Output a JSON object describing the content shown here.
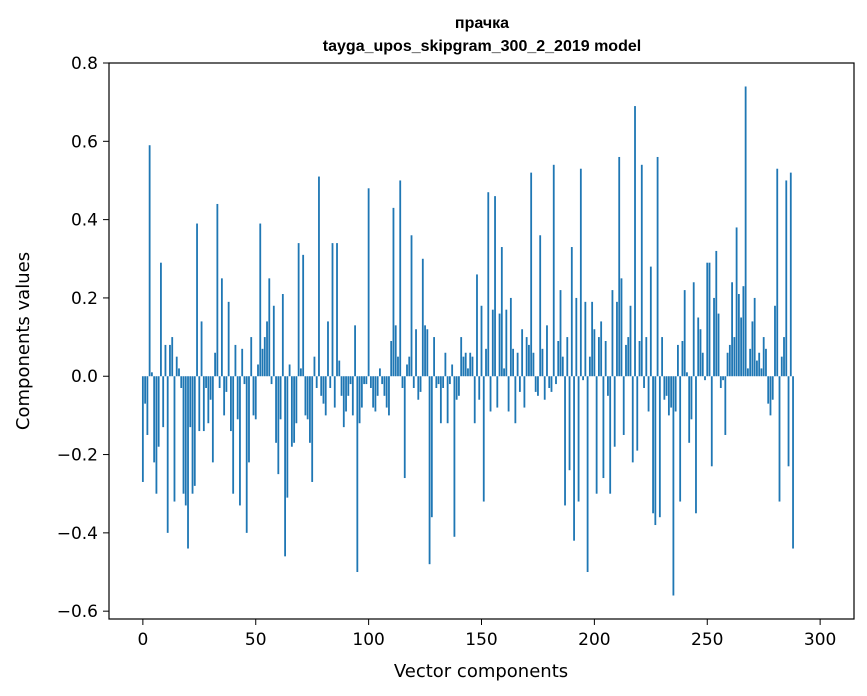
{
  "chart_data": {
    "type": "bar",
    "title": "прачка",
    "subtitle": "tayga_upos_skipgram_300_2_2019 model",
    "xlabel": "Vector components",
    "ylabel": "Components values",
    "xlim": [
      -15,
      315
    ],
    "ylim": [
      -0.62,
      0.8
    ],
    "xticks": [
      0,
      50,
      100,
      150,
      200,
      250,
      300
    ],
    "xtick_labels": [
      "0",
      "50",
      "100",
      "150",
      "200",
      "250",
      "300"
    ],
    "yticks": [
      0.8,
      0.6,
      0.4,
      0.2,
      0.0,
      -0.2,
      -0.4,
      -0.6
    ],
    "ytick_labels": [
      "0.8",
      "0.6",
      "0.4",
      "0.2",
      "0.0",
      "−0.2",
      "−0.4",
      "−0.6"
    ],
    "grid": false,
    "bar_color": "#1f77b4",
    "series": [
      {
        "values": [
          -0.27,
          -0.07,
          -0.15,
          0.59,
          0.01,
          -0.22,
          -0.3,
          -0.18,
          0.29,
          -0.13,
          0.08,
          -0.4,
          0.08,
          0.1,
          -0.32,
          0.05,
          0.02,
          -0.03,
          -0.3,
          -0.33,
          -0.44,
          -0.13,
          -0.3,
          -0.28,
          0.39,
          -0.14,
          0.14,
          -0.14,
          -0.03,
          -0.12,
          -0.06,
          -0.22,
          0.06,
          0.44,
          -0.03,
          0.25,
          -0.1,
          -0.04,
          0.19,
          -0.14,
          -0.3,
          0.08,
          -0.11,
          -0.33,
          0.07,
          -0.02,
          -0.4,
          -0.22,
          0.1,
          -0.1,
          -0.11,
          0.03,
          0.39,
          0.07,
          0.1,
          0.14,
          0.25,
          -0.02,
          0.18,
          -0.17,
          -0.25,
          -0.11,
          0.21,
          -0.46,
          -0.31,
          0.03,
          -0.18,
          -0.17,
          -0.12,
          0.34,
          0.02,
          0.31,
          -0.1,
          -0.11,
          -0.17,
          -0.27,
          0.05,
          -0.03,
          0.51,
          -0.05,
          -0.07,
          -0.1,
          0.14,
          -0.03,
          0.34,
          -0.08,
          0.34,
          0.04,
          -0.05,
          -0.13,
          -0.09,
          -0.05,
          -0.02,
          -0.1,
          0.13,
          -0.5,
          -0.12,
          -0.08,
          -0.02,
          -0.02,
          0.48,
          -0.03,
          -0.08,
          -0.09,
          -0.05,
          0.02,
          -0.02,
          -0.05,
          -0.08,
          -0.1,
          0.09,
          0.43,
          0.13,
          0.05,
          0.5,
          -0.03,
          -0.26,
          0.03,
          0.05,
          0.36,
          -0.03,
          0.12,
          -0.06,
          -0.04,
          0.3,
          0.13,
          0.12,
          -0.48,
          -0.36,
          0.1,
          -0.03,
          -0.02,
          -0.12,
          -0.03,
          0.06,
          -0.12,
          -0.02,
          0.03,
          -0.41,
          -0.06,
          -0.05,
          0.1,
          0.05,
          0.06,
          0.02,
          0.06,
          0.05,
          -0.12,
          0.26,
          -0.06,
          0.18,
          -0.32,
          0.07,
          0.47,
          -0.09,
          0.17,
          0.46,
          -0.08,
          0.16,
          0.33,
          0.02,
          0.17,
          -0.09,
          0.2,
          0.07,
          -0.12,
          0.06,
          -0.04,
          0.12,
          -0.08,
          0.1,
          0.08,
          0.52,
          0.06,
          -0.04,
          -0.05,
          0.36,
          0.07,
          -0.06,
          0.13,
          -0.03,
          -0.04,
          0.54,
          -0.02,
          0.09,
          0.22,
          0.05,
          -0.33,
          0.1,
          -0.24,
          0.33,
          -0.42,
          0.2,
          -0.32,
          0.53,
          -0.01,
          0.19,
          -0.5,
          0.05,
          0.19,
          0.12,
          -0.3,
          0.1,
          0.14,
          -0.26,
          0.09,
          -0.05,
          -0.3,
          0.22,
          -0.18,
          0.19,
          0.56,
          0.25,
          -0.15,
          0.08,
          0.1,
          0.18,
          -0.22,
          0.69,
          -0.19,
          0.09,
          0.54,
          -0.03,
          0.1,
          -0.09,
          0.28,
          -0.35,
          -0.38,
          0.56,
          -0.36,
          0.1,
          -0.06,
          -0.05,
          -0.1,
          -0.08,
          -0.56,
          -0.09,
          0.08,
          -0.32,
          0.09,
          0.22,
          0.01,
          -0.17,
          -0.11,
          0.24,
          -0.35,
          0.15,
          0.12,
          0.06,
          -0.01,
          0.29,
          0.29,
          -0.23,
          0.2,
          0.32,
          0.16,
          -0.03,
          -0.01,
          -0.15,
          0.06,
          0.08,
          0.24,
          0.1,
          0.38,
          0.21,
          0.15,
          0.23,
          0.74,
          0.02,
          0.07,
          0.14,
          0.2,
          0.04,
          0.06,
          0.02,
          0.1,
          0.07,
          -0.07,
          -0.1,
          -0.06,
          0.18,
          0.53,
          -0.32,
          0.05,
          0.1,
          0.5,
          -0.23,
          0.52,
          -0.44
        ]
      }
    ]
  }
}
